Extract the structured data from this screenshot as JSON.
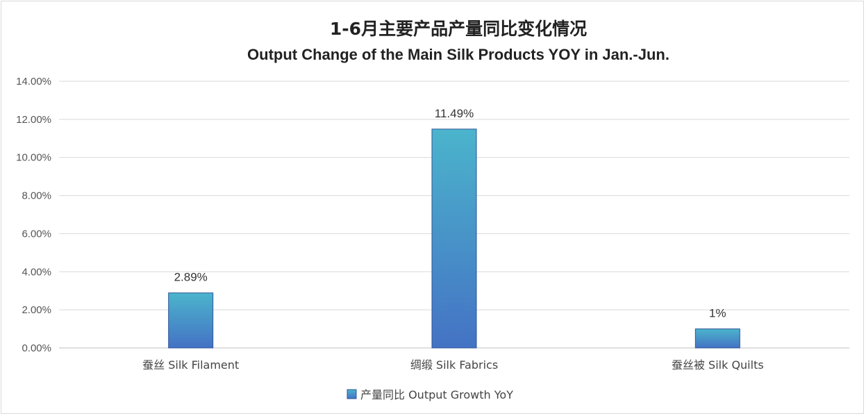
{
  "chart_data": {
    "type": "bar",
    "title": "1-6月主要产品产量同比变化情况",
    "subtitle": "Output Change of the Main Silk Products YOY in Jan.-Jun.",
    "categories": [
      "蚕丝 Silk Filament",
      "绸缎 Silk Fabrics",
      "蚕丝被  Silk Quilts"
    ],
    "series": [
      {
        "name": "产量同比 Output Growth YoY",
        "values": [
          2.89,
          11.49,
          1.0
        ],
        "labels": [
          "2.89%",
          "11.49%",
          "1%"
        ]
      }
    ],
    "ylim": [
      0,
      14
    ],
    "yticks": [
      0,
      2,
      4,
      6,
      8,
      10,
      12,
      14
    ],
    "ytick_labels": [
      "0.00%",
      "2.00%",
      "4.00%",
      "6.00%",
      "8.00%",
      "10.00%",
      "12.00%",
      "14.00%"
    ],
    "grid": true,
    "legend_position": "bottom",
    "colors": {
      "bar_top": "#4bb4cc",
      "bar_bottom": "#4472c4",
      "bar_edge": "#2f5597"
    }
  }
}
